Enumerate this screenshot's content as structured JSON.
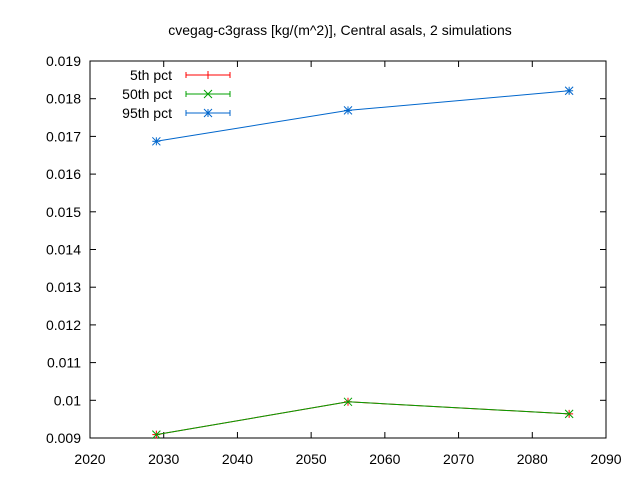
{
  "chart_data": {
    "type": "line",
    "title": "cvegag-c3grass [kg/(m^2)], Central asals, 2 simulations",
    "xlabel": "",
    "ylabel": "",
    "xlim": [
      2020,
      2090
    ],
    "ylim": [
      0.009,
      0.019
    ],
    "xticks": [
      "2020",
      "2030",
      "2040",
      "2050",
      "2060",
      "2070",
      "2080",
      "2090"
    ],
    "yticks": [
      "0.009",
      "0.01",
      "0.011",
      "0.012",
      "0.013",
      "0.014",
      "0.015",
      "0.016",
      "0.017",
      "0.018",
      "0.019"
    ],
    "grid": false,
    "legend_position": "top-left",
    "x": [
      2029,
      2055,
      2085
    ],
    "series": [
      {
        "name": "5th pct",
        "color": "#ff0000",
        "marker": "plus",
        "values": [
          0.00909,
          0.00996,
          0.00964
        ]
      },
      {
        "name": "50th pct",
        "color": "#00a000",
        "marker": "cross",
        "values": [
          0.00909,
          0.00996,
          0.00964
        ]
      },
      {
        "name": "95th pct",
        "color": "#0066cc",
        "marker": "star",
        "values": [
          0.01687,
          0.01769,
          0.01821
        ]
      }
    ]
  }
}
